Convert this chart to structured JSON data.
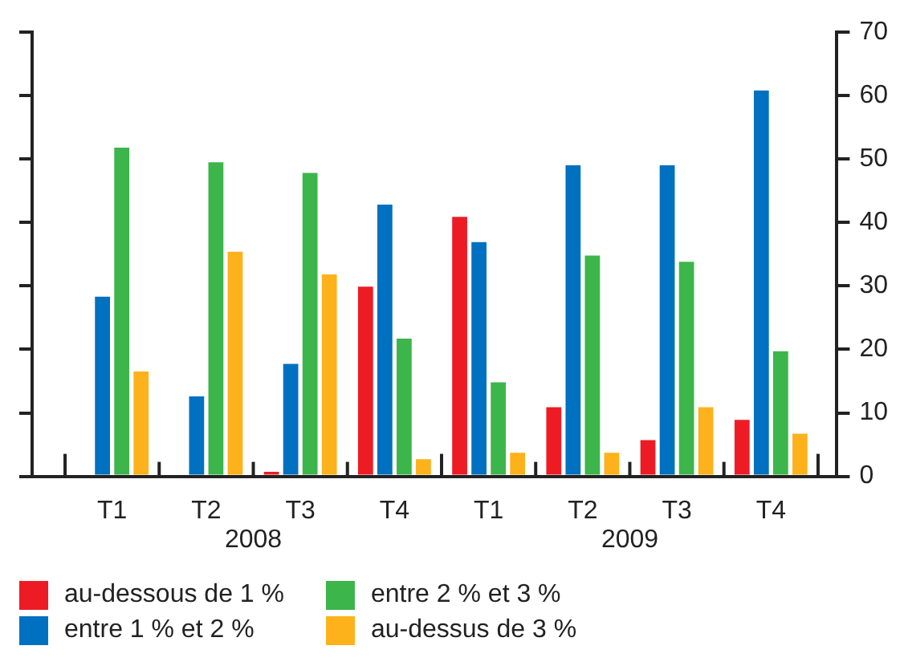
{
  "chart_data": {
    "type": "bar",
    "categories": [
      "T1",
      "T2",
      "T3",
      "T4",
      "T1",
      "T2",
      "T3",
      "T4"
    ],
    "annotations": [
      "2008",
      "2009"
    ],
    "series": [
      {
        "name": "au-dessous de 1 %",
        "color": "#ed1c24",
        "values": [
          null,
          null,
          0.7,
          29.9,
          40.9,
          10.9,
          5.7,
          8.9
        ]
      },
      {
        "name": "entre 1 % et 2 %",
        "color": "#0070c0",
        "values": [
          28.3,
          12.6,
          17.7,
          42.8,
          36.9,
          49,
          49,
          60.8
        ]
      },
      {
        "name": "entre 2 % et 3 %",
        "color": "#3cb64a",
        "values": [
          51.8,
          49.5,
          47.8,
          21.7,
          14.8,
          34.8,
          33.8,
          19.7
        ]
      },
      {
        "name": "au-dessus de 3 %",
        "color": "#fdb21b",
        "values": [
          16.5,
          35.4,
          31.8,
          2.7,
          3.7,
          3.7,
          10.9,
          6.7
        ]
      }
    ],
    "ylim": [
      0,
      70
    ],
    "yticks": [
      0,
      10,
      20,
      30,
      40,
      50,
      60,
      70
    ],
    "grid": false,
    "legend": "bottom"
  }
}
